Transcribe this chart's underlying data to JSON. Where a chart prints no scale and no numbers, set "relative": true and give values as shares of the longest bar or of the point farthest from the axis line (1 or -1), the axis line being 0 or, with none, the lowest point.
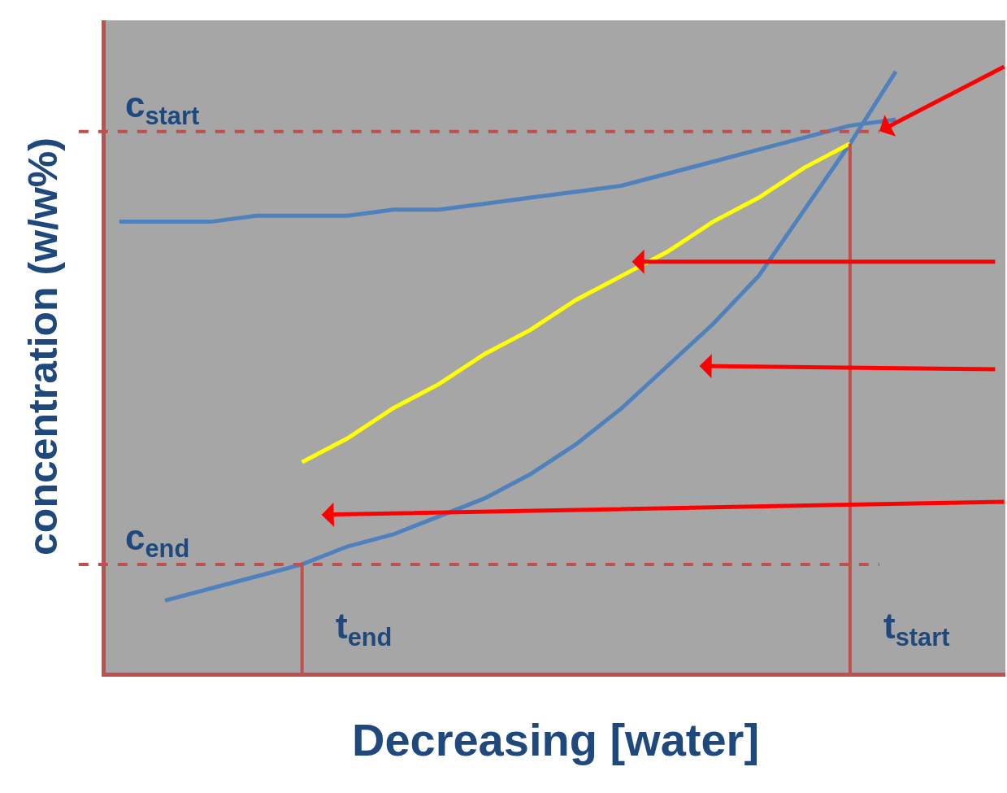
{
  "chart_data": {
    "type": "line",
    "relative": true,
    "xlabel": "Decreasing [water]",
    "ylabel": "concentration (w/w%)",
    "categories": [
      null,
      null,
      null,
      null,
      null,
      null,
      null,
      null,
      null,
      null,
      null,
      null,
      null,
      null,
      null,
      null,
      null,
      null,
      null,
      null
    ],
    "series": [
      {
        "color": "#4f81bd",
        "values": [
          0.75,
          0.75,
          0.75,
          0.76,
          0.76,
          0.76,
          0.77,
          0.77,
          0.78,
          0.79,
          0.8,
          0.81,
          0.83,
          0.85,
          0.87,
          0.89,
          0.91,
          0.92,
          null,
          null
        ]
      },
      {
        "color": "#4f81bd",
        "values": [
          null,
          0.12,
          0.14,
          0.16,
          0.18,
          0.21,
          0.23,
          0.26,
          0.29,
          0.33,
          0.38,
          0.44,
          0.51,
          0.58,
          0.66,
          0.77,
          0.88,
          1.0,
          null,
          null
        ]
      },
      {
        "color": "#ffff00",
        "values": [
          null,
          null,
          null,
          null,
          0.35,
          0.39,
          0.44,
          0.48,
          0.53,
          0.57,
          0.62,
          0.66,
          0.7,
          0.75,
          0.79,
          0.84,
          0.88,
          null,
          null,
          null
        ]
      }
    ],
    "ref_lines": [
      {
        "axis": "y",
        "value": 0.9,
        "label": "c$_{start}$",
        "color": "#c0504d",
        "line_style": "dashed"
      },
      {
        "axis": "y",
        "value": 0.18,
        "label": "c$_{end}$",
        "color": "#c0504d",
        "line_style": "dashed"
      }
    ],
    "annotations": [
      "t$_{end}$",
      "t$_{start}$"
    ],
    "marker": "none",
    "line_style": "solid"
  }
}
